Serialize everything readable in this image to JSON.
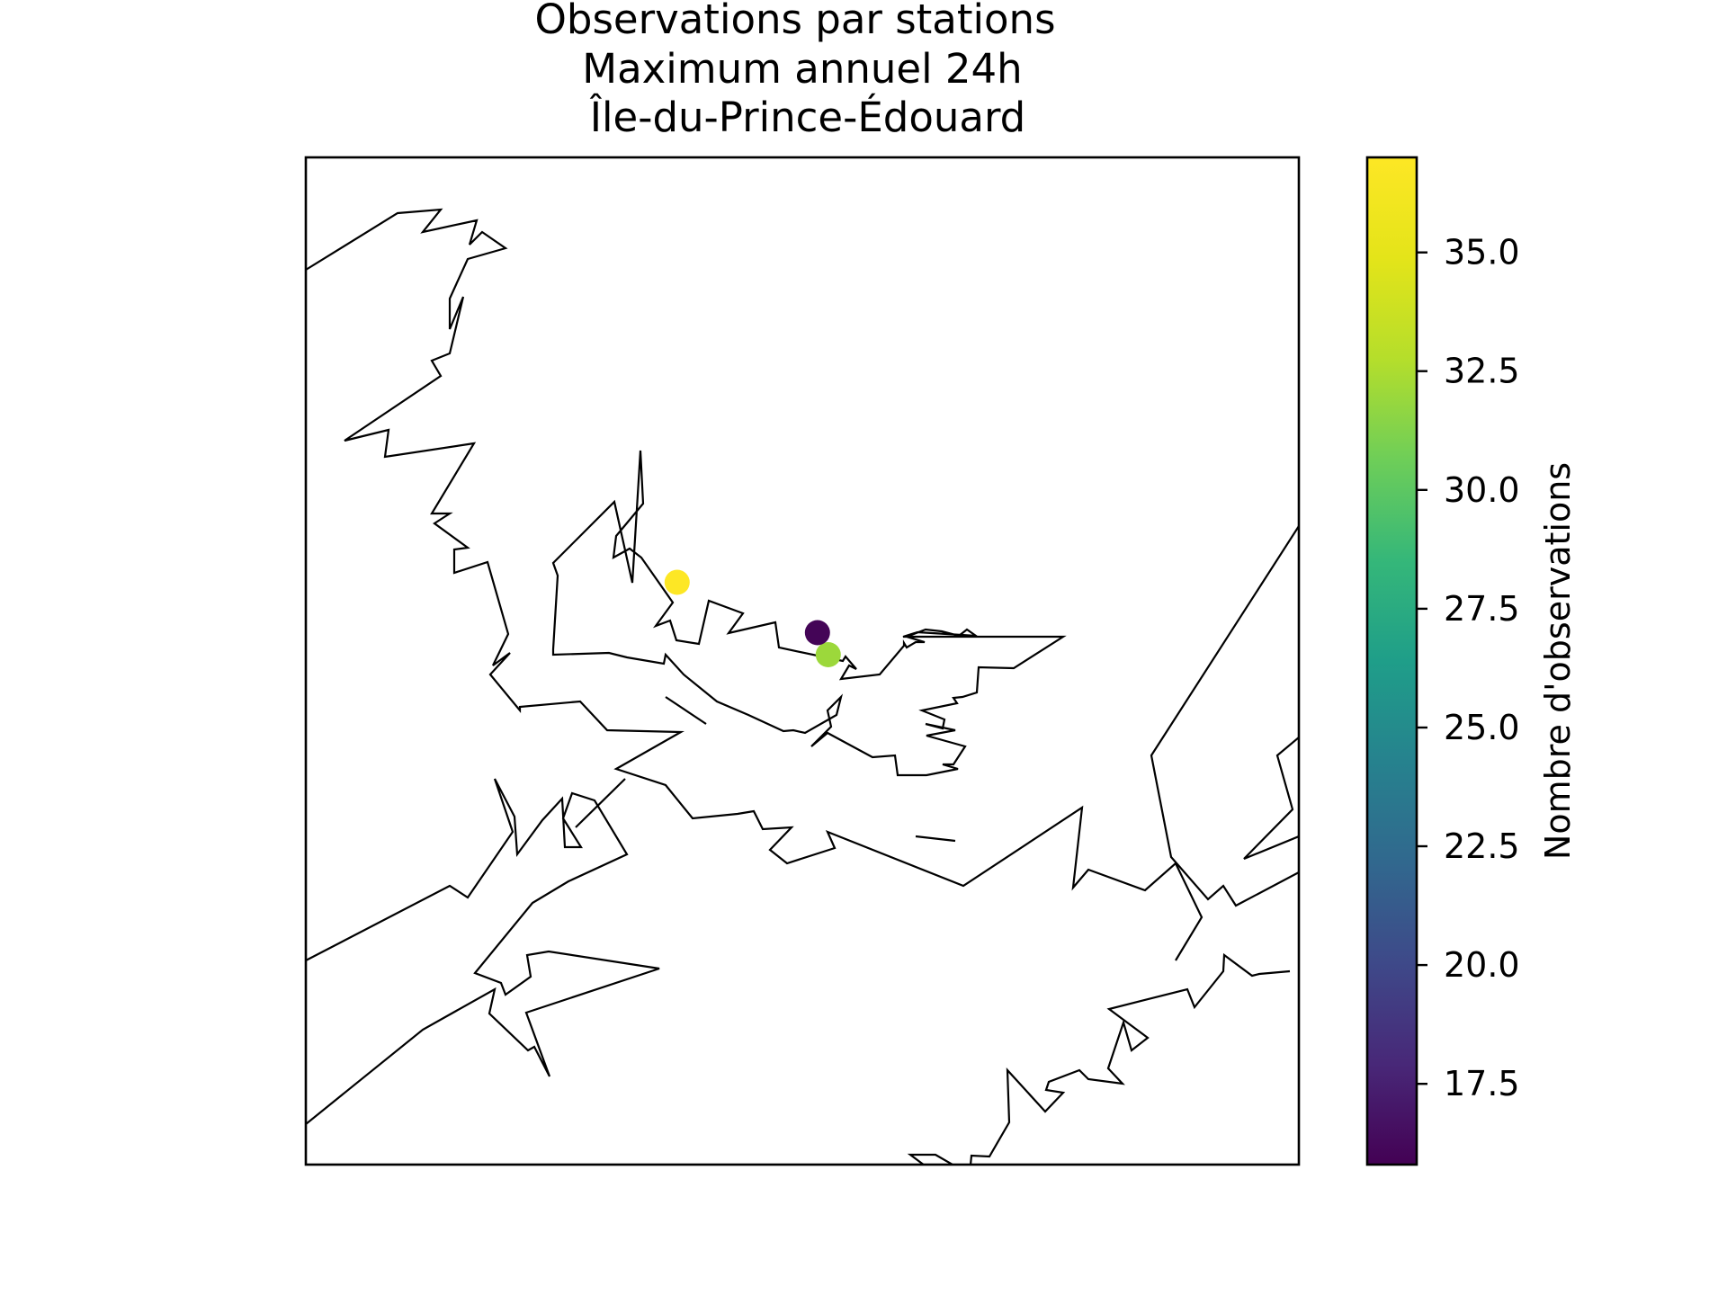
{
  "chart_data": {
    "type": "scatter",
    "title_lines": [
      "Observations par stations",
      "Maximum annuel 24h",
      "Île-du-Prince-Édouard"
    ],
    "colormap": "viridis",
    "colorbar": {
      "label": "Nombre d'observations",
      "range": [
        15.8,
        37.0
      ],
      "ticks": [
        17.5,
        20.0,
        22.5,
        25.0,
        27.5,
        30.0,
        32.5,
        35.0
      ],
      "tick_labels": [
        "17.5",
        "20.0",
        "22.5",
        "25.0",
        "27.5",
        "30.0",
        "32.5",
        "35.0"
      ]
    },
    "stations": [
      {
        "lon": -63.78,
        "lat": 46.45,
        "observations": 37
      },
      {
        "lon": -63.13,
        "lat": 46.29,
        "observations": 16
      },
      {
        "lon": -63.08,
        "lat": 46.22,
        "observations": 32
      }
    ],
    "map_extent": {
      "lon": [
        -65.5,
        -60.9
      ],
      "lat": [
        44.6,
        47.8
      ]
    },
    "legend": "colorbar-right"
  }
}
